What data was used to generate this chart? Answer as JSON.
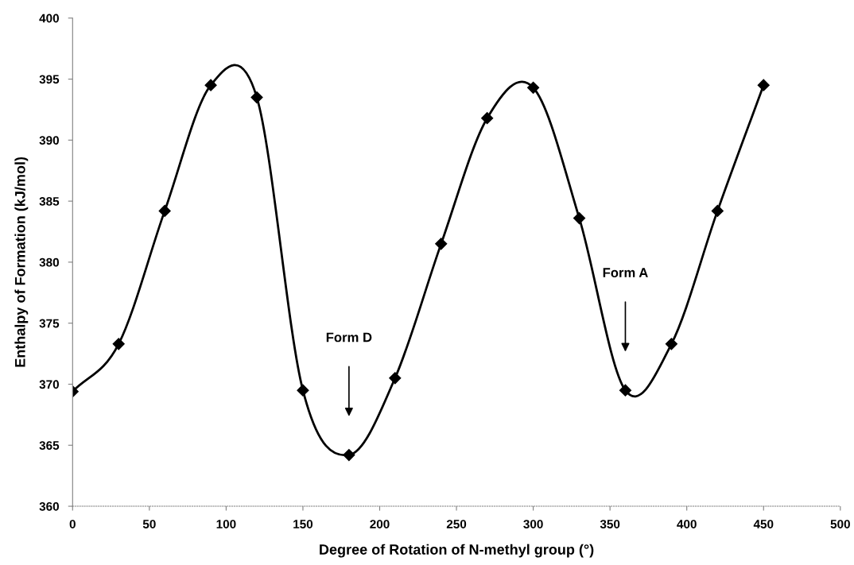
{
  "chart_data": {
    "type": "line",
    "xlabel": "Degree of Rotation of N-methyl group (°)",
    "ylabel": "Enthalpy of Formation (kJ/mol)",
    "x": [
      0,
      30,
      60,
      90,
      120,
      150,
      180,
      210,
      240,
      270,
      300,
      330,
      360,
      390,
      420,
      450
    ],
    "series": [
      {
        "color": "#000000",
        "values": [
          369.4,
          373.3,
          384.2,
          394.5,
          393.5,
          369.5,
          364.2,
          370.5,
          381.5,
          391.8,
          394.3,
          383.6,
          369.5,
          373.3,
          384.2,
          394.5
        ]
      }
    ],
    "annotations": [
      "Form D",
      "Form A"
    ],
    "xlim": [
      0,
      500
    ],
    "xticks": [
      0,
      50,
      100,
      150,
      200,
      250,
      300,
      350,
      400,
      450,
      500
    ],
    "ylim": [
      360,
      400
    ],
    "yticks": [
      360,
      365,
      370,
      375,
      380,
      385,
      390,
      395,
      400
    ],
    "grid": false,
    "legend": false,
    "marker": "diamond",
    "line_style": "solid"
  }
}
